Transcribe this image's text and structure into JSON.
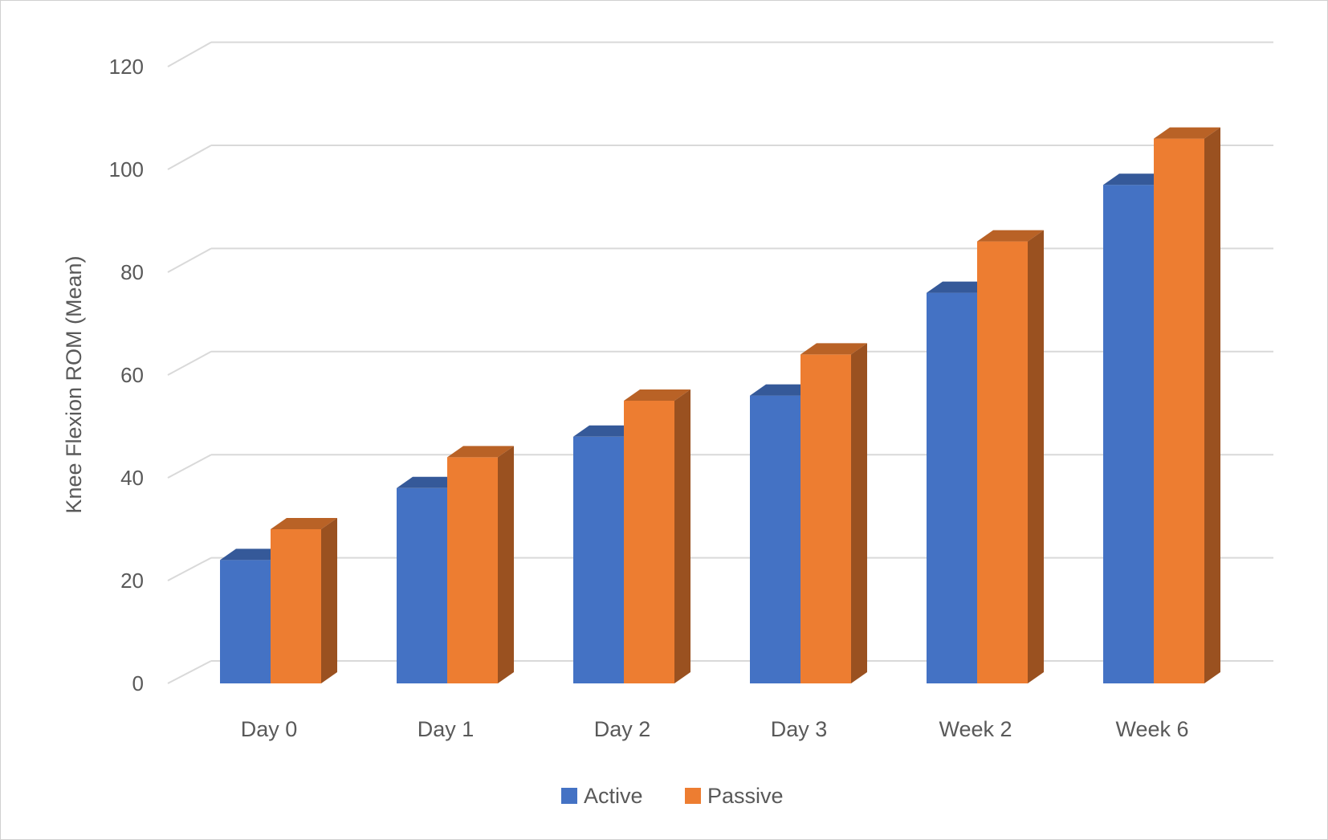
{
  "chart_data": {
    "type": "bar",
    "style": "3d-clustered-column",
    "title": "",
    "xlabel": "",
    "ylabel": "Knee Flexion ROM (Mean)",
    "ylim": [
      0,
      120
    ],
    "yticks": [
      0,
      20,
      40,
      60,
      80,
      100,
      120
    ],
    "grid": true,
    "legend_position": "bottom",
    "categories": [
      "Day 0",
      "Day 1",
      "Day 2",
      "Day 3",
      "Week 2",
      "Week 6"
    ],
    "series": [
      {
        "name": "Active",
        "color": "#4472C4",
        "values": [
          24,
          38,
          48,
          56,
          76,
          97
        ]
      },
      {
        "name": "Passive",
        "color": "#ED7D31",
        "values": [
          30,
          44,
          55,
          64,
          86,
          106
        ]
      }
    ]
  }
}
